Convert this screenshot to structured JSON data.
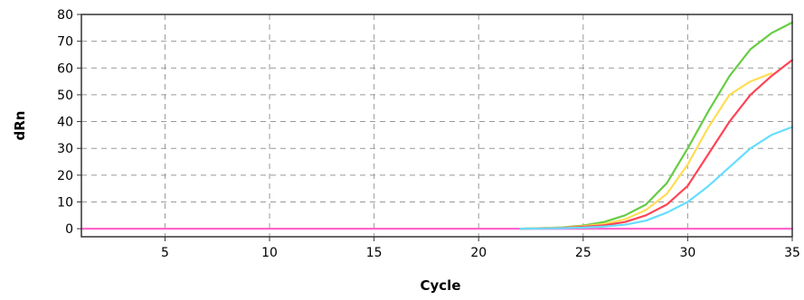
{
  "chart_data": {
    "type": "line",
    "title": "",
    "xlabel": "Cycle",
    "ylabel": "dRn",
    "xlim": [
      1,
      35
    ],
    "ylim": [
      -3,
      80
    ],
    "xticks": [
      5,
      10,
      15,
      20,
      25,
      30,
      35
    ],
    "yticks": [
      0,
      10,
      20,
      30,
      40,
      50,
      60,
      70,
      80
    ],
    "xtick_labels": [
      "5",
      "10",
      "15",
      "20",
      "25",
      "30",
      "35"
    ],
    "ytick_labels": [
      "0",
      "10",
      "20",
      "30",
      "40",
      "50",
      "60",
      "70",
      "80"
    ],
    "grid": true,
    "legend": "none",
    "series": [
      {
        "color": "#ff66cc",
        "x": [
          1,
          35
        ],
        "y": [
          0,
          0
        ]
      },
      {
        "color": "#66cc44",
        "x": [
          22,
          23,
          24,
          25,
          26,
          27,
          28,
          29,
          30,
          31,
          32,
          33,
          34,
          35
        ],
        "y": [
          0,
          0.2,
          0.5,
          1.2,
          2.5,
          5,
          9,
          17,
          30,
          44,
          57,
          67,
          73,
          77
        ]
      },
      {
        "color": "#ffdd55",
        "x": [
          22,
          23,
          24,
          25,
          26,
          27,
          28,
          29,
          30,
          31,
          32,
          33,
          34
        ],
        "y": [
          0,
          0.2,
          0.4,
          0.9,
          1.8,
          3.5,
          7,
          13,
          24,
          38,
          50,
          55,
          58
        ]
      },
      {
        "color": "#ff4455",
        "x": [
          22,
          23,
          24,
          25,
          26,
          27,
          28,
          29,
          30,
          31,
          32,
          33,
          34,
          35
        ],
        "y": [
          0,
          0.1,
          0.3,
          0.7,
          1.3,
          2.5,
          5,
          9,
          16,
          28,
          40,
          50,
          57,
          63
        ]
      },
      {
        "color": "#66ddff",
        "x": [
          22,
          23,
          24,
          25,
          26,
          27,
          28,
          29,
          30,
          31,
          32,
          33,
          34,
          35
        ],
        "y": [
          0,
          0.1,
          0.2,
          0.4,
          0.8,
          1.5,
          3,
          6,
          10,
          16,
          23,
          30,
          35,
          38
        ]
      }
    ]
  }
}
